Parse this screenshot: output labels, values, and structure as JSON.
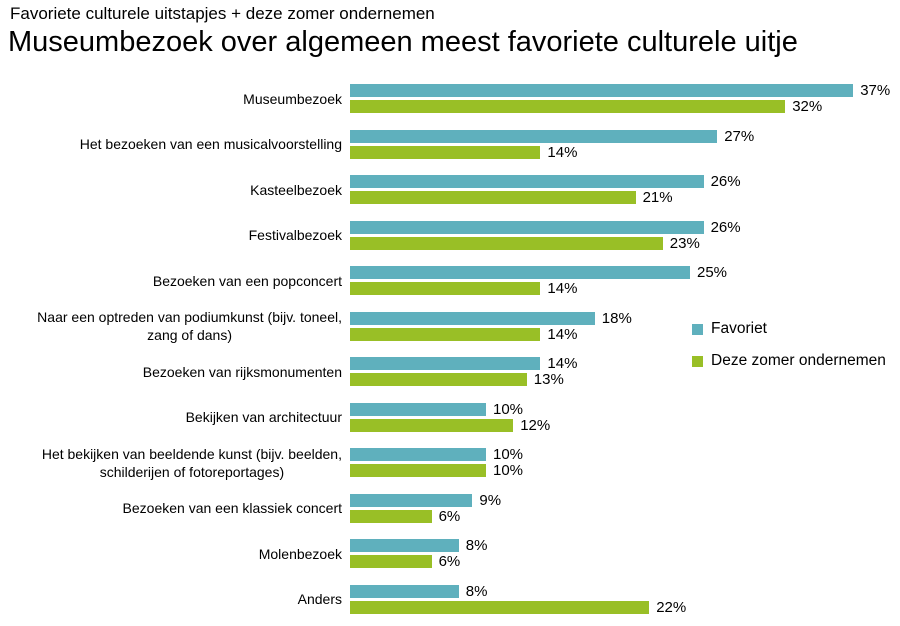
{
  "header": {
    "subtitle": "Favoriete culturele uitstapjes + deze zomer ondernemen",
    "title": "Museumbezoek over algemeen meest favoriete culturele uitje"
  },
  "legend": {
    "items": [
      {
        "label": "Favoriet",
        "color": "#5fb0bd"
      },
      {
        "label": "Deze zomer ondernemen",
        "color": "#99bf26"
      }
    ]
  },
  "chart_data": {
    "type": "bar",
    "orientation": "horizontal",
    "title": "Museumbezoek over algemeen meest favoriete culturele uitje",
    "subtitle": "Favoriete culturele uitstapjes + deze zomer ondernemen",
    "value_suffix": "%",
    "xlim": [
      0,
      40
    ],
    "grid": false,
    "axis_lines": false,
    "legend_position": "right-middle",
    "categories": [
      "Museumbezoek",
      "Het bezoeken van een musicalvoorstelling",
      "Kasteelbezoek",
      "Festivalbezoek",
      "Bezoeken van een popconcert",
      "Naar een optreden van podiumkunst (bijv. toneel,\nzang of dans)",
      "Bezoeken van rijksmonumenten",
      "Bekijken van architectuur",
      "Het bekijken van beeldende kunst (bijv. beelden,\nschilderijen of fotoreportages)",
      "Bezoeken van een klassiek concert",
      "Molenbezoek",
      "Anders"
    ],
    "series": [
      {
        "name": "Favoriet",
        "color": "#5fb0bd",
        "values": [
          37,
          27,
          26,
          26,
          25,
          18,
          14,
          10,
          10,
          9,
          8,
          8
        ]
      },
      {
        "name": "Deze zomer ondernemen",
        "color": "#99bf26",
        "values": [
          32,
          14,
          21,
          23,
          14,
          14,
          13,
          12,
          10,
          6,
          6,
          22
        ]
      }
    ]
  }
}
